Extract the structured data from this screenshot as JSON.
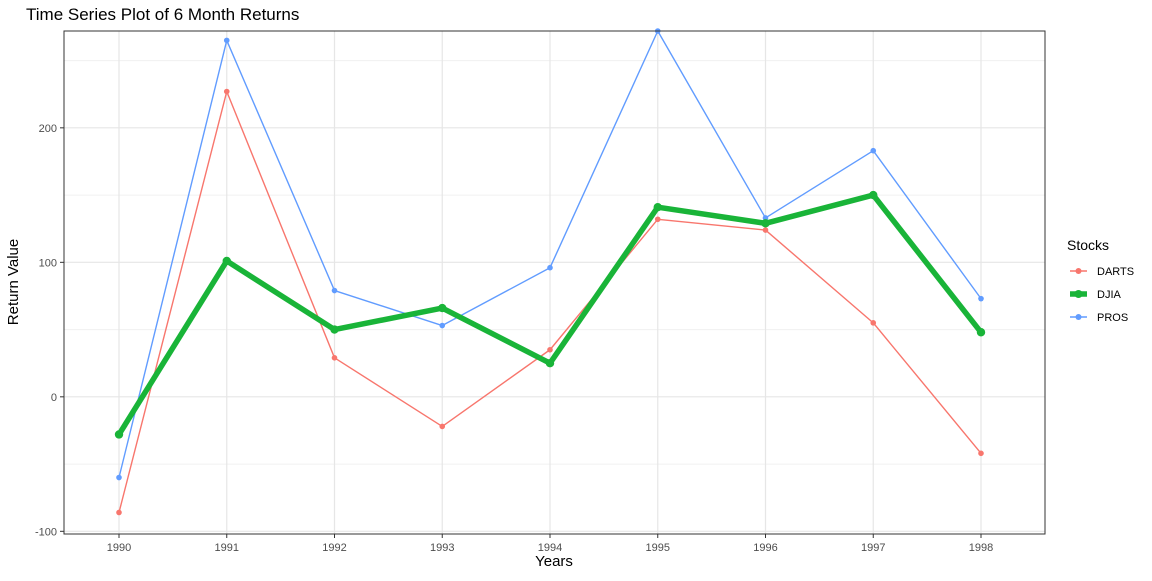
{
  "chart_data": {
    "type": "line",
    "title": "Time Series Plot of 6 Month Returns",
    "xlabel": "Years",
    "ylabel": "Return Value",
    "x": [
      1990,
      1991,
      1992,
      1993,
      1994,
      1995,
      1996,
      1997,
      1998
    ],
    "x_tick_labels": [
      "1990",
      "1991",
      "1992",
      "1993",
      "1994",
      "1995",
      "1996",
      "1997",
      "1998"
    ],
    "y_ticks": [
      -100,
      0,
      100,
      200
    ],
    "y_tick_labels": [
      "-100",
      "0",
      "100",
      "200"
    ],
    "ylim": [
      -102,
      272
    ],
    "grid": true,
    "legend": {
      "title": "Stocks",
      "position": "right"
    },
    "series": [
      {
        "name": "DARTS",
        "color": "#F8766D",
        "emphasized": false,
        "values": [
          -86,
          227,
          29,
          -22,
          35,
          132,
          124,
          55,
          -42
        ]
      },
      {
        "name": "DJIA",
        "color": "#19B438",
        "emphasized": true,
        "values": [
          -28,
          101,
          50,
          66,
          25,
          141,
          129,
          150,
          48
        ]
      },
      {
        "name": "PROS",
        "color": "#619CFF",
        "emphasized": false,
        "values": [
          -60,
          265,
          79,
          53,
          96,
          272,
          133,
          183,
          73
        ]
      }
    ]
  }
}
